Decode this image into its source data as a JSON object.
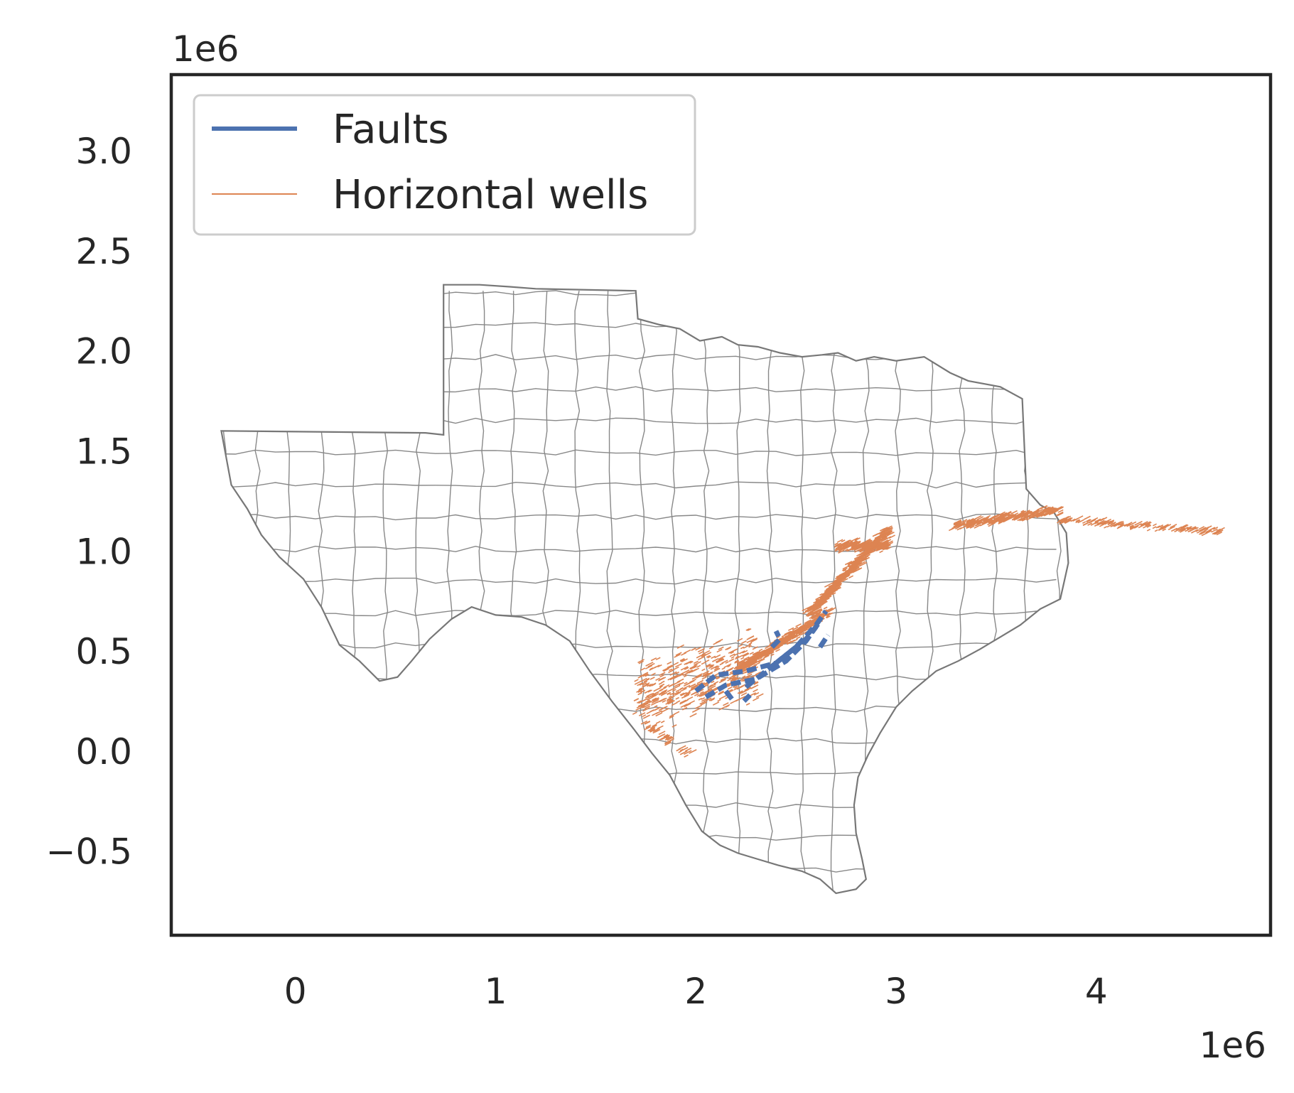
{
  "chart_data": {
    "type": "map",
    "title": "",
    "xlabel": "",
    "ylabel": "",
    "x_offset_label": "1e6",
    "y_offset_label": "1e6",
    "xlim": [
      -0.62,
      4.87
    ],
    "ylim": [
      -0.92,
      3.38
    ],
    "x_ticks": [
      0,
      1,
      2,
      3,
      4
    ],
    "x_tick_labels": [
      "0",
      "1",
      "2",
      "3",
      "4"
    ],
    "y_ticks": [
      -0.5,
      0.0,
      0.5,
      1.0,
      1.5,
      2.0,
      2.5,
      3.0
    ],
    "y_tick_labels": [
      "−0.5",
      "0.0",
      "0.5",
      "1.0",
      "1.5",
      "2.0",
      "2.5",
      "3.0"
    ],
    "grid": false,
    "legend_position": "upper-left",
    "series": [
      {
        "name": "Faults",
        "color": "#4c72b0"
      },
      {
        "name": "Horizontal wells",
        "color": "#dd8452"
      }
    ],
    "texas_outline": [
      [
        -0.37,
        1.6
      ],
      [
        0.65,
        1.59
      ],
      [
        0.74,
        1.58
      ],
      [
        0.74,
        2.33
      ],
      [
        0.92,
        2.33
      ],
      [
        1.07,
        2.32
      ],
      [
        1.2,
        2.31
      ],
      [
        1.7,
        2.3
      ],
      [
        1.71,
        2.16
      ],
      [
        1.82,
        2.13
      ],
      [
        1.92,
        2.11
      ],
      [
        2.02,
        2.05
      ],
      [
        2.13,
        2.07
      ],
      [
        2.21,
        2.03
      ],
      [
        2.31,
        2.02
      ],
      [
        2.42,
        1.99
      ],
      [
        2.53,
        1.97
      ],
      [
        2.63,
        1.98
      ],
      [
        2.71,
        1.99
      ],
      [
        2.8,
        1.95
      ],
      [
        2.89,
        1.97
      ],
      [
        3.0,
        1.95
      ],
      [
        3.14,
        1.97
      ],
      [
        3.27,
        1.89
      ],
      [
        3.36,
        1.85
      ],
      [
        3.52,
        1.82
      ],
      [
        3.63,
        1.76
      ],
      [
        3.65,
        1.31
      ],
      [
        3.72,
        1.23
      ],
      [
        3.79,
        1.19
      ],
      [
        3.85,
        1.09
      ],
      [
        3.86,
        0.94
      ],
      [
        3.84,
        0.85
      ],
      [
        3.82,
        0.76
      ],
      [
        3.72,
        0.71
      ],
      [
        3.62,
        0.63
      ],
      [
        3.52,
        0.57
      ],
      [
        3.42,
        0.51
      ],
      [
        3.31,
        0.45
      ],
      [
        3.2,
        0.4
      ],
      [
        3.08,
        0.3
      ],
      [
        3.0,
        0.22
      ],
      [
        2.92,
        0.09
      ],
      [
        2.86,
        -0.02
      ],
      [
        2.81,
        -0.13
      ],
      [
        2.79,
        -0.27
      ],
      [
        2.8,
        -0.41
      ],
      [
        2.83,
        -0.54
      ],
      [
        2.85,
        -0.64
      ],
      [
        2.8,
        -0.69
      ],
      [
        2.7,
        -0.71
      ],
      [
        2.62,
        -0.64
      ],
      [
        2.53,
        -0.6
      ],
      [
        2.41,
        -0.57
      ],
      [
        2.31,
        -0.54
      ],
      [
        2.21,
        -0.51
      ],
      [
        2.12,
        -0.47
      ],
      [
        2.03,
        -0.4
      ],
      [
        1.95,
        -0.27
      ],
      [
        1.87,
        -0.12
      ],
      [
        1.78,
        -0.01
      ],
      [
        1.69,
        0.11
      ],
      [
        1.58,
        0.25
      ],
      [
        1.47,
        0.4
      ],
      [
        1.37,
        0.55
      ],
      [
        1.25,
        0.63
      ],
      [
        1.13,
        0.67
      ],
      [
        1.0,
        0.68
      ],
      [
        0.88,
        0.72
      ],
      [
        0.78,
        0.66
      ],
      [
        0.67,
        0.56
      ],
      [
        0.58,
        0.45
      ],
      [
        0.51,
        0.37
      ],
      [
        0.42,
        0.35
      ],
      [
        0.32,
        0.45
      ],
      [
        0.22,
        0.53
      ],
      [
        0.13,
        0.72
      ],
      [
        0.04,
        0.86
      ],
      [
        -0.08,
        0.97
      ],
      [
        -0.17,
        1.08
      ],
      [
        -0.24,
        1.21
      ],
      [
        -0.32,
        1.33
      ],
      [
        -0.37,
        1.6
      ]
    ]
  }
}
